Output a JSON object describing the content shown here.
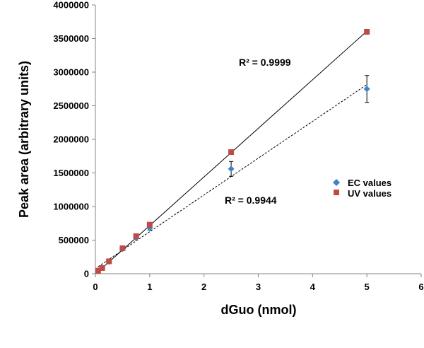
{
  "chart_data": {
    "type": "scatter",
    "xlabel": "dGuo (nmol)",
    "ylabel": "Peak area (arbitrary units)",
    "xlim": [
      0,
      6
    ],
    "ylim": [
      0,
      4000000
    ],
    "x_ticks": [
      "0",
      "1",
      "2",
      "3",
      "4",
      "5",
      "6"
    ],
    "y_ticks": [
      "0",
      "500000",
      "1000000",
      "1500000",
      "2000000",
      "2500000",
      "3000000",
      "3500000",
      "4000000"
    ],
    "grid": false,
    "legend_position": "right",
    "series": [
      {
        "name": "EC values",
        "color": "#3f82c8",
        "marker": "diamond",
        "trendline": "dotted",
        "r2_label": "R² = 0.9944",
        "points": [
          {
            "x": 0.05,
            "y": 50000
          },
          {
            "x": 0.125,
            "y": 85000
          },
          {
            "x": 0.25,
            "y": 180000
          },
          {
            "x": 0.5,
            "y": 370000
          },
          {
            "x": 0.75,
            "y": 530000
          },
          {
            "x": 1.0,
            "y": 680000,
            "err": 30000
          },
          {
            "x": 2.5,
            "y": 1560000,
            "err": 110000
          },
          {
            "x": 5.0,
            "y": 2750000,
            "err": 200000
          }
        ],
        "fit": {
          "x": [
            0.05,
            5.0
          ],
          "y": [
            105000,
            2815000
          ]
        }
      },
      {
        "name": "UV values",
        "color": "#be4b48",
        "marker": "square",
        "trendline": "solid",
        "r2_label": "R² = 0.9999",
        "points": [
          {
            "x": 0.05,
            "y": 45000
          },
          {
            "x": 0.125,
            "y": 85000
          },
          {
            "x": 0.25,
            "y": 185000
          },
          {
            "x": 0.5,
            "y": 380000
          },
          {
            "x": 0.75,
            "y": 560000
          },
          {
            "x": 1.0,
            "y": 730000
          },
          {
            "x": 2.5,
            "y": 1810000
          },
          {
            "x": 5.0,
            "y": 3600000
          }
        ],
        "fit": {
          "x": [
            0.05,
            5.0
          ],
          "y": [
            30000,
            3610000
          ]
        }
      }
    ]
  }
}
